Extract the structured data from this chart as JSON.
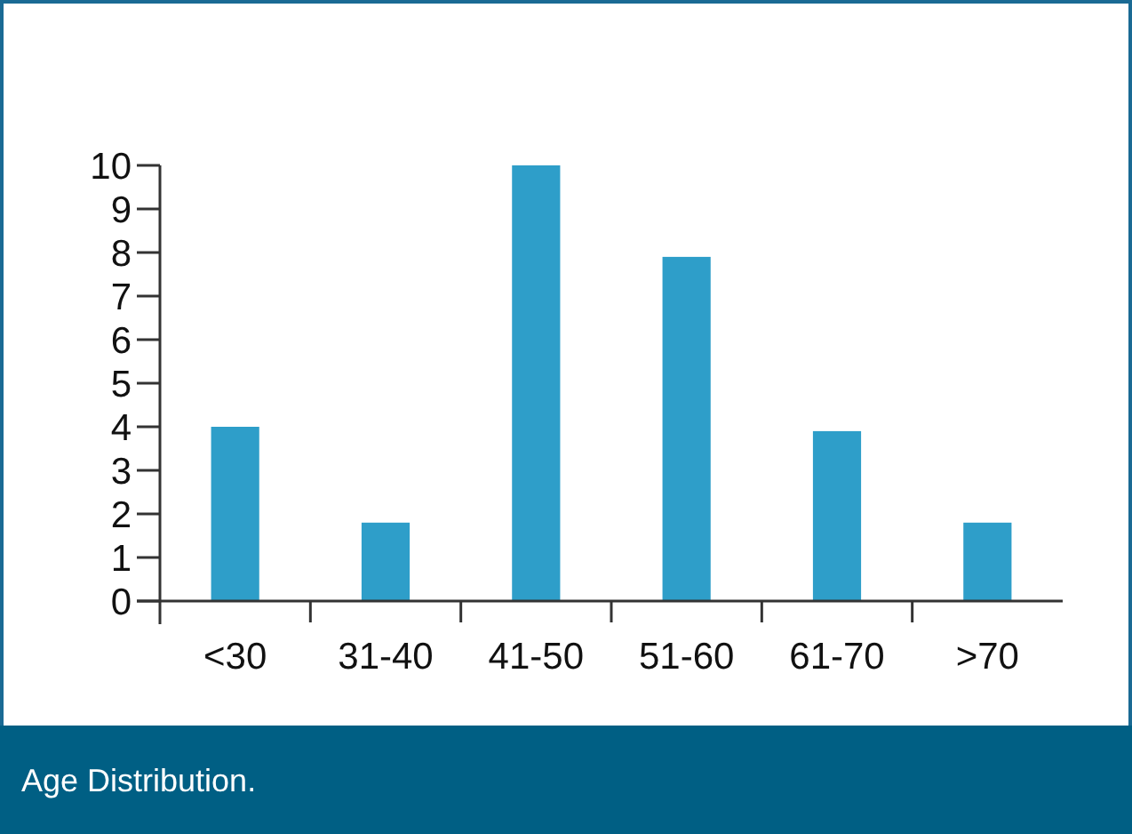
{
  "chart_data": {
    "type": "bar",
    "title": "Age Distribution.",
    "categories": [
      "<30",
      "31-40",
      "41-50",
      "51-60",
      "61-70",
      ">70"
    ],
    "values": [
      4,
      1.8,
      10,
      7.9,
      3.9,
      1.8
    ],
    "color": "#2e9ec9",
    "ylim": [
      0,
      10
    ],
    "yticks": [
      0,
      1,
      2,
      3,
      4,
      5,
      6,
      7,
      8,
      9,
      10
    ],
    "grid": false
  }
}
